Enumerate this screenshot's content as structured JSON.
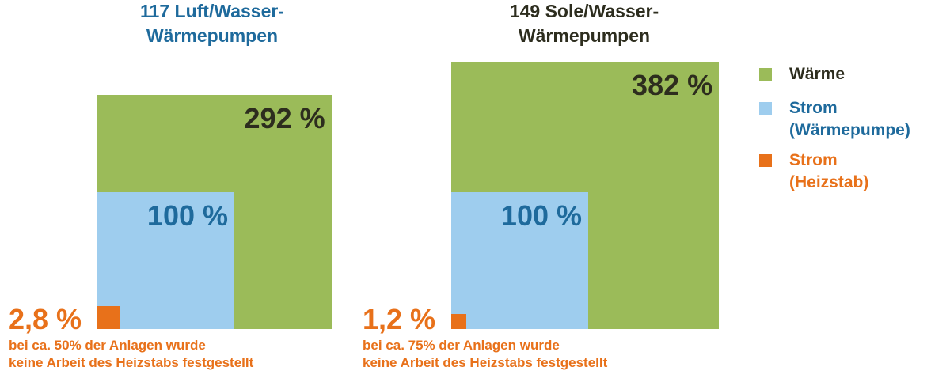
{
  "colors": {
    "waerme": "#9bbb59",
    "strom_wp": "#9ecdee",
    "strom_heizstab": "#e8711a",
    "title_left": "#1e6a9c",
    "title_right": "#2d2d1e"
  },
  "chart_data": [
    {
      "type": "area",
      "title": "117 Luft/Wasser-\nWärmepumpen",
      "series": [
        {
          "name": "Wärme",
          "value": 292,
          "label": "292 %"
        },
        {
          "name": "Strom (Wärmepumpe)",
          "value": 100,
          "label": "100 %"
        },
        {
          "name": "Strom (Heizstab)",
          "value": 2.8,
          "label": "2,8 %"
        }
      ],
      "note": "bei ca. 50% der Anlagen wurde\nkeine Arbeit des Heizstabs festgestellt"
    },
    {
      "type": "area",
      "title": "149 Sole/Wasser-\nWärmepumpen",
      "series": [
        {
          "name": "Wärme",
          "value": 382,
          "label": "382 %"
        },
        {
          "name": "Strom (Wärmepumpe)",
          "value": 100,
          "label": "100 %"
        },
        {
          "name": "Strom (Heizstab)",
          "value": 1.2,
          "label": "1,2 %"
        }
      ],
      "note": "bei ca. 75% der Anlagen wurde\nkeine Arbeit des Heizstabs festgestellt"
    }
  ],
  "legend": [
    {
      "label": "Wärme",
      "color": "#9bbb59",
      "text_color": "#2d2d1e"
    },
    {
      "label": "Strom\n(Wärmepumpe)",
      "color": "#9ecdee",
      "text_color": "#1e6a9c"
    },
    {
      "label": "Strom\n(Heizstab)",
      "color": "#e8711a",
      "text_color": "#e8711a"
    }
  ]
}
